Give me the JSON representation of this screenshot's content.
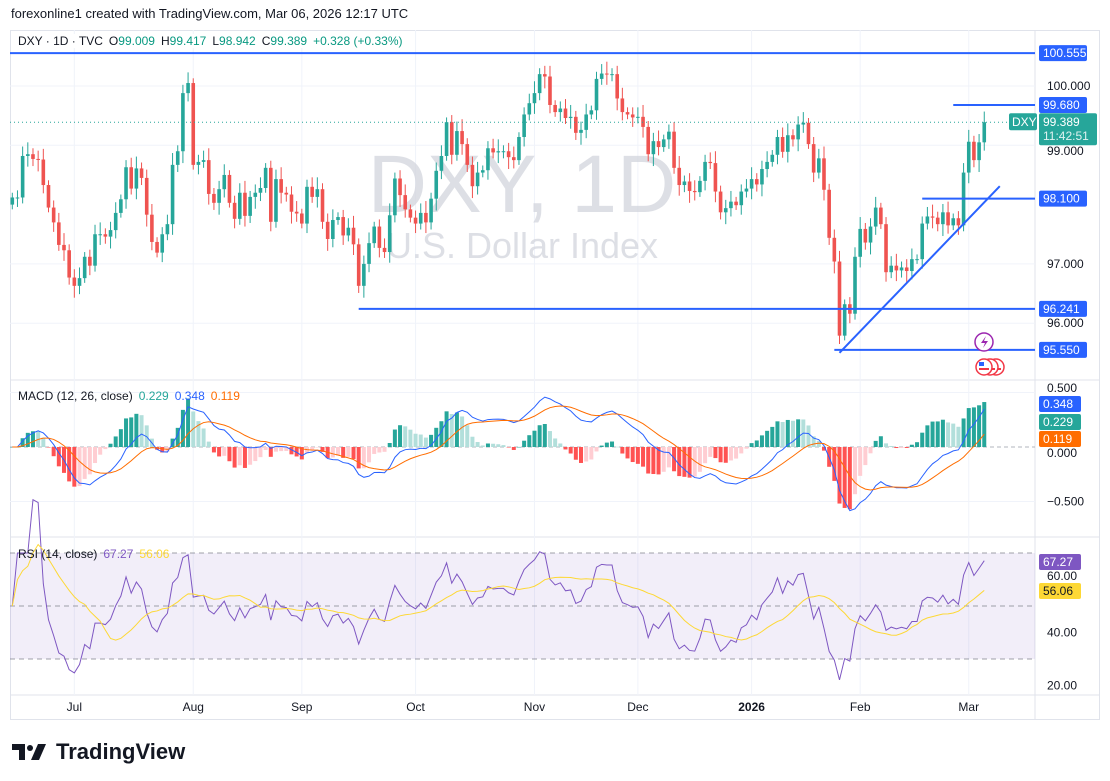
{
  "header": {
    "attribution": "forexonline1 created with TradingView.com, Mar 06, 2026 12:17 UTC"
  },
  "legend": {
    "symbol": "DXY · 1D · TVC",
    "open_label": "O",
    "open": "99.009",
    "high_label": "H",
    "high": "99.417",
    "low_label": "L",
    "low": "98.942",
    "close_label": "C",
    "close": "99.389",
    "change": "+0.328 (+0.33%)"
  },
  "watermark": {
    "title": "DXY, 1D",
    "subtitle": "U.S. Dollar Index"
  },
  "price_badge": {
    "symbol": "DXY",
    "price": "99.389",
    "countdown": "11:42:51"
  },
  "brand": {
    "name": "TradingView"
  },
  "colors": {
    "up": "#26a69a",
    "down": "#ef5350",
    "levels": "#2962ff",
    "macd": "#2962ff",
    "signal": "#ff6d00",
    "rsi": "#7e57c2",
    "rsi_ma": "#fdd835"
  },
  "chart_data": [
    {
      "type": "candlestick",
      "symbol": "DXY",
      "interval": "1D",
      "ylim": [
        95.3,
        101.0
      ],
      "y_ticks": [
        "100.000",
        "99.000",
        "97.000",
        "96.000"
      ],
      "y_tick_values": [
        100,
        99,
        97,
        96
      ],
      "x_ticks": [
        {
          "label": "Jul",
          "bar": 12
        },
        {
          "label": "Aug",
          "bar": 35
        },
        {
          "label": "Sep",
          "bar": 56
        },
        {
          "label": "Oct",
          "bar": 78
        },
        {
          "label": "Nov",
          "bar": 101
        },
        {
          "label": "Dec",
          "bar": 121
        },
        {
          "label": "2026",
          "bar": 143
        },
        {
          "label": "Feb",
          "bar": 164
        },
        {
          "label": "Mar",
          "bar": 185
        }
      ],
      "first_open": 98.0,
      "closes": [
        98.12,
        98.12,
        98.82,
        98.85,
        98.77,
        98.76,
        98.33,
        97.95,
        97.7,
        97.32,
        97.23,
        96.77,
        96.63,
        96.76,
        97.12,
        96.97,
        97.5,
        97.5,
        97.46,
        97.57,
        97.86,
        98.09,
        98.63,
        98.27,
        98.61,
        98.45,
        97.83,
        97.37,
        97.19,
        97.5,
        97.67,
        98.67,
        98.9,
        99.88,
        100.05,
        98.67,
        98.72,
        98.75,
        98.18,
        98.03,
        98.26,
        98.5,
        98.03,
        97.76,
        98.2,
        97.81,
        98.13,
        98.2,
        98.28,
        98.62,
        97.71,
        98.43,
        98.2,
        98.17,
        97.88,
        97.85,
        97.68,
        98.3,
        98.13,
        98.26,
        97.71,
        97.42,
        97.74,
        97.79,
        97.48,
        97.61,
        97.33,
        96.63,
        97.0,
        97.35,
        97.63,
        97.27,
        97.2,
        97.82,
        98.44,
        98.16,
        97.92,
        97.78,
        97.68,
        97.86,
        97.7,
        98.1,
        98.57,
        98.82,
        99.39,
        98.84,
        99.24,
        99.02,
        98.67,
        98.31,
        98.54,
        98.58,
        98.95,
        98.88,
        98.9,
        98.9,
        98.8,
        98.75,
        99.14,
        99.52,
        99.71,
        99.88,
        100.2,
        100.16,
        99.68,
        99.56,
        99.62,
        99.46,
        99.48,
        99.21,
        99.26,
        99.52,
        99.59,
        100.12,
        100.21,
        100.2,
        100.2,
        99.79,
        99.56,
        99.52,
        99.47,
        99.48,
        99.31,
        98.85,
        99.07,
        98.97,
        99.1,
        99.23,
        98.62,
        98.33,
        98.39,
        98.23,
        98.21,
        98.4,
        98.72,
        98.7,
        98.22,
        97.87,
        97.94,
        98.05,
        97.99,
        98.22,
        98.27,
        98.43,
        98.34,
        98.6,
        98.72,
        98.84,
        99.14,
        98.89,
        99.17,
        99.1,
        99.35,
        99.38,
        99.02,
        98.54,
        98.78,
        98.25,
        97.44,
        97.04,
        95.79,
        96.32,
        96.16,
        97.12,
        97.59,
        97.36,
        97.63,
        97.95,
        97.67,
        96.86,
        96.97,
        96.89,
        96.94,
        96.88,
        97.08,
        97.08,
        97.68,
        97.8,
        97.78,
        97.67,
        97.87,
        97.65,
        97.77,
        97.65,
        98.54,
        99.06,
        98.75,
        99.05,
        99.389
      ],
      "last_price": 99.389,
      "horizontal_levels": [
        {
          "label": "100.555",
          "price": 100.555,
          "from_bar": 0
        },
        {
          "label": "99.680",
          "price": 99.68,
          "from_bar": 182
        },
        {
          "label": "98.100",
          "price": 98.1,
          "from_bar": 176
        },
        {
          "label": "96.241",
          "price": 96.241,
          "from_bar": 67
        },
        {
          "label": "95.550",
          "price": 95.55,
          "from_bar": 159
        }
      ],
      "trendline": {
        "from": {
          "bar": 160,
          "price": 95.5
        },
        "to": {
          "bar": 191,
          "price": 98.31
        }
      }
    },
    {
      "type": "macd",
      "label": "MACD (12, 26, close)",
      "params": [
        12,
        26,
        9
      ],
      "values": {
        "histogram": "0.229",
        "macd": "0.348",
        "signal": "0.119"
      },
      "ylim": [
        -0.6,
        0.56
      ],
      "y_ticks": [
        "0.500",
        "0.000",
        "−0.500"
      ],
      "y_tick_values": [
        0.5,
        0,
        -0.5
      ]
    },
    {
      "type": "rsi",
      "label": "RSI (14, close)",
      "period": 14,
      "values": {
        "rsi": "67.27",
        "ma": "56.06"
      },
      "ylim": [
        17,
        74
      ],
      "bands": [
        30,
        50,
        70
      ],
      "y_ticks": [
        "60.00",
        "40.00",
        "20.00"
      ],
      "y_tick_values": [
        60,
        40,
        20
      ]
    }
  ]
}
